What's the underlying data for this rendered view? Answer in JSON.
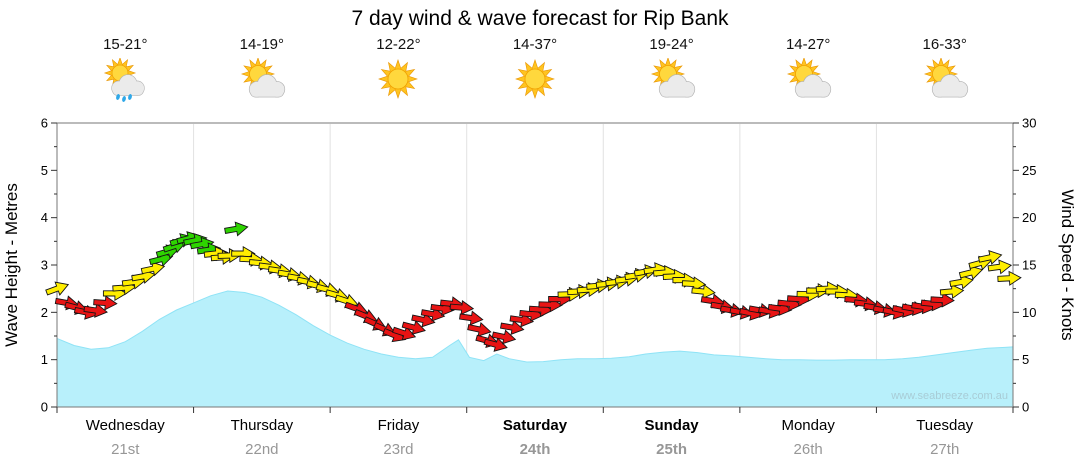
{
  "title": "7 day wind & wave forecast for Rip Bank",
  "watermark": "www.seabreeze.com.au",
  "axes": {
    "left_label": "Wave Height - Metres",
    "right_label": "Wind Speed - Knots",
    "left_ticks": [
      0,
      1,
      2,
      3,
      4,
      5,
      6
    ],
    "right_ticks": [
      0,
      5,
      10,
      15,
      20,
      25,
      30
    ],
    "ylim_left": [
      0,
      6
    ],
    "ylim_right": [
      0,
      30
    ]
  },
  "days": [
    {
      "name": "Wednesday",
      "date": "21st",
      "temp": "15-21°",
      "icon": "sun-cloud-rain",
      "weekend": false
    },
    {
      "name": "Thursday",
      "date": "22nd",
      "temp": "14-19°",
      "icon": "sun-cloud",
      "weekend": false
    },
    {
      "name": "Friday",
      "date": "23rd",
      "temp": "12-22°",
      "icon": "sun",
      "weekend": false
    },
    {
      "name": "Saturday",
      "date": "24th",
      "temp": "14-37°",
      "icon": "sun",
      "weekend": true
    },
    {
      "name": "Sunday",
      "date": "25th",
      "temp": "19-24°",
      "icon": "sun-cloud",
      "weekend": true
    },
    {
      "name": "Monday",
      "date": "26th",
      "temp": "14-27°",
      "icon": "sun-cloud",
      "weekend": false
    },
    {
      "name": "Tuesday",
      "date": "27th",
      "temp": "16-33°",
      "icon": "sun-cloud",
      "weekend": false
    }
  ],
  "chart_data": {
    "type": "area+wind-arrows",
    "x_unit": "days (0 = start Wednesday 21st, 7 = end Tuesday 27th)",
    "x_range": [
      0,
      7
    ],
    "ylim_left_metres": [
      0,
      6
    ],
    "ylim_right_knots": [
      0,
      30
    ],
    "grid": "vertical day separators only",
    "colors": {
      "wave_fill": "#b8f0fb",
      "wave_edge": "#8fe3f6",
      "arrow_red": "#e81414",
      "arrow_yellow": "#ffee00",
      "arrow_green": "#2ed400"
    },
    "arrow_colors": {
      "r": "#e81414",
      "y": "#ffee00",
      "g": "#2ed400"
    },
    "wave_series": {
      "name": "Wave Height",
      "unit": "m",
      "points": [
        [
          0,
          1.45
        ],
        [
          0.125,
          1.3
        ],
        [
          0.25,
          1.22
        ],
        [
          0.375,
          1.25
        ],
        [
          0.5,
          1.38
        ],
        [
          0.625,
          1.6
        ],
        [
          0.75,
          1.85
        ],
        [
          0.875,
          2.05
        ],
        [
          1,
          2.2
        ],
        [
          1.125,
          2.35
        ],
        [
          1.25,
          2.45
        ],
        [
          1.375,
          2.42
        ],
        [
          1.5,
          2.32
        ],
        [
          1.625,
          2.15
        ],
        [
          1.75,
          1.95
        ],
        [
          1.875,
          1.72
        ],
        [
          2,
          1.52
        ],
        [
          2.125,
          1.35
        ],
        [
          2.25,
          1.22
        ],
        [
          2.375,
          1.12
        ],
        [
          2.5,
          1.05
        ],
        [
          2.625,
          1.02
        ],
        [
          2.75,
          1.05
        ],
        [
          2.875,
          1.3
        ],
        [
          2.94,
          1.42
        ],
        [
          3.02,
          1.05
        ],
        [
          3.125,
          0.98
        ],
        [
          3.22,
          1.12
        ],
        [
          3.31,
          1.02
        ],
        [
          3.44,
          0.95
        ],
        [
          3.56,
          0.96
        ],
        [
          3.69,
          1
        ],
        [
          3.81,
          1.02
        ],
        [
          3.94,
          1.02
        ],
        [
          4.06,
          1.03
        ],
        [
          4.19,
          1.06
        ],
        [
          4.31,
          1.12
        ],
        [
          4.44,
          1.16
        ],
        [
          4.56,
          1.18
        ],
        [
          4.69,
          1.15
        ],
        [
          4.81,
          1.1
        ],
        [
          4.94,
          1.08
        ],
        [
          5.06,
          1.05
        ],
        [
          5.19,
          1.02
        ],
        [
          5.31,
          1
        ],
        [
          5.44,
          1
        ],
        [
          5.56,
          0.99
        ],
        [
          5.69,
          0.99
        ],
        [
          5.81,
          1
        ],
        [
          5.94,
          1
        ],
        [
          6.06,
          1
        ],
        [
          6.19,
          1.02
        ],
        [
          6.31,
          1.05
        ],
        [
          6.44,
          1.1
        ],
        [
          6.56,
          1.15
        ],
        [
          6.69,
          1.2
        ],
        [
          6.81,
          1.24
        ],
        [
          6.94,
          1.26
        ],
        [
          7,
          1.27
        ]
      ]
    },
    "wind_series": {
      "name": "Wind Speed",
      "unit": "knots",
      "point_format": "[day, knots, direction_deg, color(r|y|g)]",
      "points": [
        [
          0,
          12.5,
          -20,
          "y"
        ],
        [
          0.07,
          11,
          10,
          "r"
        ],
        [
          0.14,
          10.5,
          15,
          "r"
        ],
        [
          0.21,
          10,
          12,
          "r"
        ],
        [
          0.28,
          10.2,
          8,
          "r"
        ],
        [
          0.35,
          11,
          4,
          "r"
        ],
        [
          0.42,
          12,
          0,
          "y"
        ],
        [
          0.49,
          12.6,
          -4,
          "y"
        ],
        [
          0.56,
          13.2,
          -8,
          "y"
        ],
        [
          0.63,
          13.8,
          -10,
          "y"
        ],
        [
          0.7,
          14.6,
          -12,
          "y"
        ],
        [
          0.76,
          15.6,
          -14,
          "g"
        ],
        [
          0.81,
          16.4,
          -16,
          "g"
        ],
        [
          0.86,
          17,
          -18,
          "g"
        ],
        [
          0.91,
          17.6,
          -16,
          "g"
        ],
        [
          0.96,
          17.8,
          -14,
          "g"
        ],
        [
          1.01,
          17.6,
          -12,
          "g"
        ],
        [
          1.06,
          17.2,
          -10,
          "g"
        ],
        [
          1.11,
          16.6,
          -8,
          "g"
        ],
        [
          1.16,
          16.2,
          -6,
          "y"
        ],
        [
          1.21,
          15.8,
          -4,
          "y"
        ],
        [
          1.26,
          16,
          -2,
          "y"
        ],
        [
          1.31,
          18.8,
          -10,
          "g"
        ],
        [
          1.36,
          16.2,
          0,
          "y"
        ],
        [
          1.42,
          15.6,
          3,
          "y"
        ],
        [
          1.49,
          15.2,
          5,
          "y"
        ],
        [
          1.56,
          14.8,
          7,
          "y"
        ],
        [
          1.63,
          14.4,
          8,
          "y"
        ],
        [
          1.7,
          14,
          10,
          "y"
        ],
        [
          1.77,
          13.6,
          10,
          "y"
        ],
        [
          1.84,
          13.2,
          12,
          "y"
        ],
        [
          1.91,
          12.8,
          14,
          "y"
        ],
        [
          1.98,
          12.4,
          15,
          "y"
        ],
        [
          2.05,
          11.8,
          16,
          "y"
        ],
        [
          2.12,
          11.2,
          18,
          "y"
        ],
        [
          2.19,
          10.4,
          20,
          "r"
        ],
        [
          2.26,
          9.6,
          22,
          "r"
        ],
        [
          2.33,
          8.8,
          24,
          "r"
        ],
        [
          2.4,
          8.2,
          24,
          "r"
        ],
        [
          2.47,
          7.6,
          22,
          "r"
        ],
        [
          2.54,
          7.8,
          18,
          "r"
        ],
        [
          2.61,
          8.4,
          15,
          "r"
        ],
        [
          2.68,
          9.2,
          12,
          "r"
        ],
        [
          2.75,
          9.8,
          10,
          "r"
        ],
        [
          2.82,
          10.4,
          8,
          "r"
        ],
        [
          2.89,
          10.9,
          6,
          "r"
        ],
        [
          2.96,
          10.5,
          5,
          "r"
        ],
        [
          3.03,
          9.4,
          8,
          "r"
        ],
        [
          3.09,
          8.2,
          12,
          "r"
        ],
        [
          3.15,
          7,
          15,
          "r"
        ],
        [
          3.21,
          6.6,
          15,
          "r"
        ],
        [
          3.27,
          7.4,
          12,
          "r"
        ],
        [
          3.33,
          8.4,
          10,
          "r"
        ],
        [
          3.4,
          9.2,
          8,
          "r"
        ],
        [
          3.47,
          9.8,
          6,
          "r"
        ],
        [
          3.54,
          10.3,
          4,
          "r"
        ],
        [
          3.61,
          10.8,
          2,
          "r"
        ],
        [
          3.68,
          11.4,
          0,
          "r"
        ],
        [
          3.75,
          11.9,
          -2,
          "y"
        ],
        [
          3.82,
          12.2,
          -3,
          "y"
        ],
        [
          3.89,
          12.4,
          -4,
          "y"
        ],
        [
          3.96,
          12.8,
          -5,
          "y"
        ],
        [
          4.03,
          13,
          -5,
          "y"
        ],
        [
          4.1,
          13.2,
          -6,
          "y"
        ],
        [
          4.17,
          13.5,
          -8,
          "y"
        ],
        [
          4.24,
          13.9,
          -9,
          "y"
        ],
        [
          4.31,
          14.3,
          -10,
          "y"
        ],
        [
          4.38,
          14.5,
          -8,
          "y"
        ],
        [
          4.45,
          14.2,
          -5,
          "y"
        ],
        [
          4.52,
          13.8,
          -3,
          "y"
        ],
        [
          4.59,
          13.4,
          0,
          "y"
        ],
        [
          4.66,
          13,
          3,
          "y"
        ],
        [
          4.73,
          12.2,
          6,
          "y"
        ],
        [
          4.8,
          11.2,
          9,
          "r"
        ],
        [
          4.87,
          10.6,
          10,
          "r"
        ],
        [
          4.94,
          10.2,
          10,
          "r"
        ],
        [
          5.01,
          10,
          11,
          "r"
        ],
        [
          5.08,
          9.9,
          12,
          "r"
        ],
        [
          5.15,
          10.2,
          10,
          "r"
        ],
        [
          5.22,
          10.1,
          10,
          "r"
        ],
        [
          5.29,
          10.4,
          8,
          "r"
        ],
        [
          5.36,
          10.9,
          6,
          "r"
        ],
        [
          5.43,
          11.4,
          4,
          "r"
        ],
        [
          5.5,
          11.9,
          2,
          "y"
        ],
        [
          5.57,
          12.3,
          0,
          "y"
        ],
        [
          5.64,
          12.5,
          -3,
          "y"
        ],
        [
          5.71,
          12.2,
          0,
          "y"
        ],
        [
          5.78,
          11.8,
          3,
          "y"
        ],
        [
          5.85,
          11.3,
          5,
          "r"
        ],
        [
          5.92,
          10.9,
          7,
          "r"
        ],
        [
          5.99,
          10.5,
          9,
          "r"
        ],
        [
          6.06,
          10.2,
          10,
          "r"
        ],
        [
          6.13,
          10,
          12,
          "r"
        ],
        [
          6.2,
          10.2,
          12,
          "r"
        ],
        [
          6.27,
          10.4,
          10,
          "r"
        ],
        [
          6.34,
          10.6,
          8,
          "r"
        ],
        [
          6.41,
          10.9,
          6,
          "r"
        ],
        [
          6.48,
          11.3,
          3,
          "r"
        ],
        [
          6.55,
          12.2,
          -5,
          "y"
        ],
        [
          6.62,
          13.2,
          -10,
          "y"
        ],
        [
          6.69,
          14.2,
          -14,
          "y"
        ],
        [
          6.76,
          15.2,
          -15,
          "y"
        ],
        [
          6.83,
          15.8,
          -12,
          "y"
        ],
        [
          6.9,
          14.8,
          -8,
          "y"
        ],
        [
          6.97,
          13.6,
          -3,
          "y"
        ]
      ]
    }
  }
}
